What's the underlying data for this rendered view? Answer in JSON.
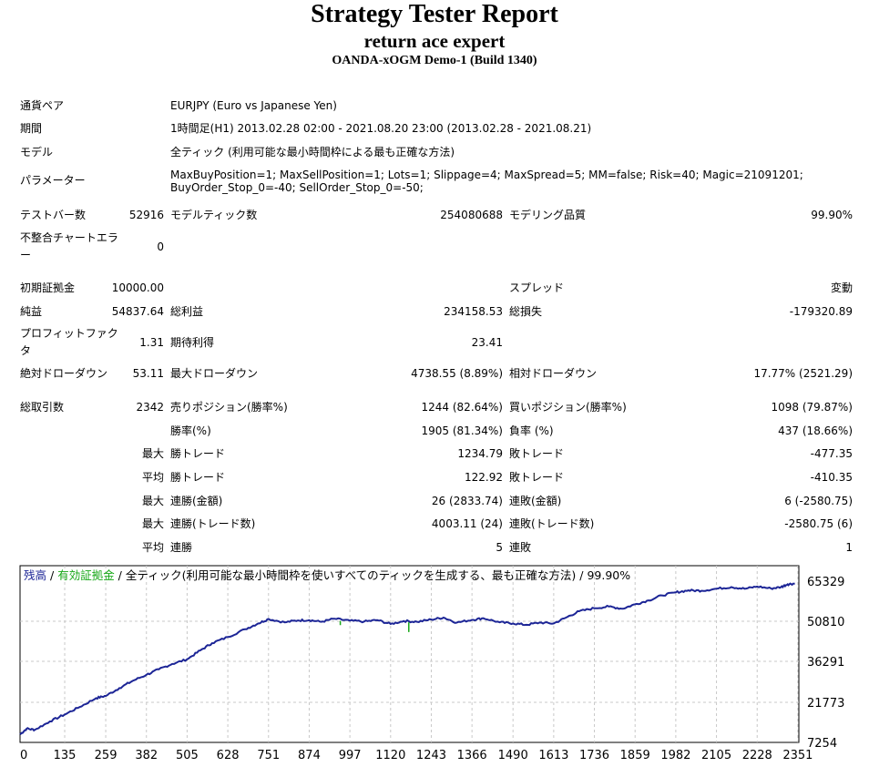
{
  "header": {
    "title": "Strategy Tester Report",
    "expert": "return ace expert",
    "server": "OANDA-xOGM Demo-1 (Build 1340)"
  },
  "info": {
    "symbol_label": "通貨ペア",
    "symbol_value": "EURJPY (Euro vs Japanese Yen)",
    "period_label": "期間",
    "period_value": "1時間足(H1) 2013.02.28 02:00 - 2021.08.20 23:00 (2013.02.28 - 2021.08.21)",
    "model_label": "モデル",
    "model_value": "全ティック (利用可能な最小時間枠による最も正確な方法)",
    "params_label": "パラメーター",
    "params_value": "MaxBuyPosition=1; MaxSellPosition=1; Lots=1; Slippage=4; MaxSpread=5; MM=false; Risk=40; Magic=21091201; BuyOrder_Stop_0=-40; SellOrder_Stop_0=-50;"
  },
  "stats": {
    "bars_label": "テストバー数",
    "bars_value": "52916",
    "ticks_label": "モデルティック数",
    "ticks_value": "254080688",
    "quality_label": "モデリング品質",
    "quality_value": "99.90%",
    "mismatch_label": "不整合チャートエラー",
    "mismatch_value": "0",
    "deposit_label": "初期証拠金",
    "deposit_value": "10000.00",
    "spread_label": "スプレッド",
    "spread_value": "変動",
    "net_label": "純益",
    "net_value": "54837.64",
    "gross_profit_label": "総利益",
    "gross_profit_value": "234158.53",
    "gross_loss_label": "総損失",
    "gross_loss_value": "-179320.89",
    "pf_label": "プロフィットファクタ",
    "pf_value": "1.31",
    "expected_label": "期待利得",
    "expected_value": "23.41",
    "abs_dd_label": "絶対ドローダウン",
    "abs_dd_value": "53.11",
    "max_dd_label": "最大ドローダウン",
    "max_dd_value": "4738.55 (8.89%)",
    "rel_dd_label": "相対ドローダウン",
    "rel_dd_value": "17.77% (2521.29)",
    "trades_label": "総取引数",
    "trades_value": "2342",
    "short_label": "売りポジション(勝率%)",
    "short_value": "1244 (82.64%)",
    "long_label": "買いポジション(勝率%)",
    "long_value": "1098 (79.87%)",
    "win_rate_label": "勝率(%)",
    "win_rate_value": "1905 (81.34%)",
    "loss_rate_label": "負率 (%)",
    "loss_rate_value": "437 (18.66%)",
    "max_label": "最大",
    "avg_label": "平均",
    "win_trade_label": "勝トレード",
    "loss_trade_label": "敗トレード",
    "largest_win": "1234.79",
    "largest_loss": "-477.35",
    "avg_win": "122.92",
    "avg_loss": "-410.35",
    "consec_win_money_label": "連勝(金額)",
    "consec_win_money_value": "26 (2833.74)",
    "consec_loss_money_label": "連敗(金額)",
    "consec_loss_money_value": "6 (-2580.75)",
    "consec_win_trades_label": "連勝(トレード数)",
    "consec_win_trades_value": "4003.11 (24)",
    "consec_loss_trades_label": "連敗(トレード数)",
    "consec_loss_trades_value": "-2580.75 (6)",
    "avg_consec_win_label": "連勝",
    "avg_consec_win_value": "5",
    "avg_consec_loss_label": "連敗",
    "avg_consec_loss_value": "1"
  },
  "chart_data": {
    "type": "line",
    "legend": {
      "balance": "残高",
      "sep1": " / ",
      "equity": "有効証拠金",
      "sep2": " / ",
      "model": "全ティック(利用可能な最小時間枠を使いすべてのティックを生成する、最も正確な方法)",
      "sep3": " / ",
      "quality": "99.90%"
    },
    "colors": {
      "balance": "#1c2596",
      "equity": "#18a818",
      "legend_balance": "#1c2596",
      "legend_equity": "#18a818",
      "grid": "#c8c8c8"
    },
    "x_ticks": [
      0,
      135,
      259,
      382,
      505,
      628,
      751,
      874,
      997,
      1120,
      1243,
      1366,
      1490,
      1613,
      1736,
      1859,
      1982,
      2105,
      2228,
      2351
    ],
    "y_ticks": [
      65329,
      50810,
      36291,
      21773,
      7254
    ],
    "xlim": [
      0,
      2342
    ],
    "ylim": [
      7254,
      65329
    ],
    "series": [
      {
        "name": "残高",
        "x": [
          0,
          20,
          45,
          90,
          135,
          180,
          230,
          259,
          300,
          340,
          382,
          420,
          460,
          505,
          545,
          580,
          628,
          680,
          720,
          751,
          800,
          840,
          874,
          910,
          950,
          997,
          1040,
          1080,
          1120,
          1160,
          1200,
          1243,
          1280,
          1320,
          1366,
          1400,
          1450,
          1490,
          1530,
          1570,
          1613,
          1650,
          1690,
          1736,
          1780,
          1820,
          1859,
          1900,
          1940,
          1982,
          2020,
          2060,
          2105,
          2150,
          2190,
          2228,
          2270,
          2300,
          2320,
          2342
        ],
        "y": [
          10100,
          12200,
          11800,
          14800,
          17300,
          20000,
          23200,
          24000,
          26800,
          29400,
          31600,
          33600,
          35500,
          37200,
          40400,
          43000,
          45200,
          48000,
          50100,
          51700,
          50500,
          51200,
          51300,
          50700,
          51800,
          51100,
          50800,
          51300,
          49900,
          51000,
          50700,
          51500,
          52200,
          50400,
          51400,
          52000,
          50500,
          50100,
          49600,
          50400,
          50100,
          52200,
          54500,
          55600,
          56200,
          55400,
          57000,
          58400,
          60200,
          61300,
          62000,
          61900,
          62600,
          63200,
          62600,
          63400,
          62700,
          63200,
          64200,
          64500
        ]
      }
    ],
    "equity_dips": [
      {
        "x": 968,
        "y_top": 51000,
        "y_bottom": 49500
      },
      {
        "x": 1175,
        "y_top": 50500,
        "y_bottom": 47000
      }
    ]
  }
}
